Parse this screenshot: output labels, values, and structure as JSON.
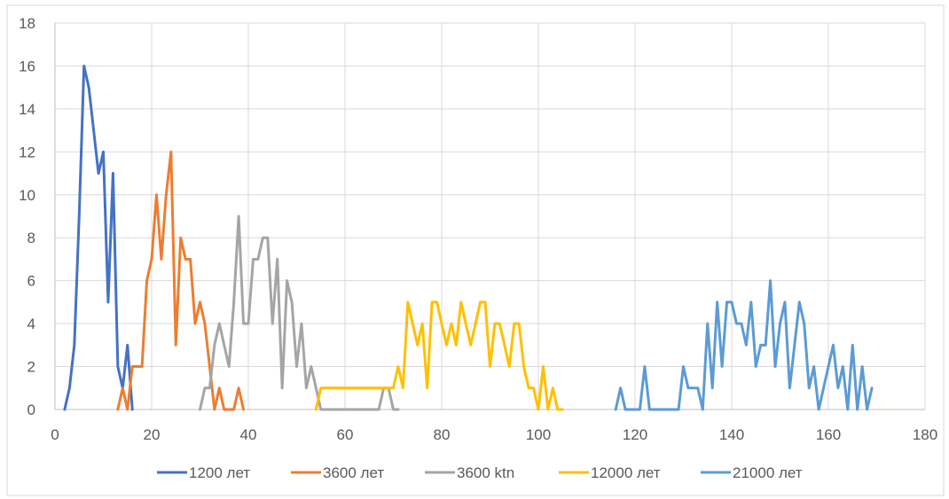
{
  "chart_data": {
    "type": "line",
    "title": "",
    "xlabel": "",
    "ylabel": "",
    "xlim": [
      0,
      180
    ],
    "ylim": [
      0,
      18
    ],
    "x_ticks": [
      0,
      20,
      40,
      60,
      80,
      100,
      120,
      140,
      160,
      180
    ],
    "y_ticks": [
      0,
      2,
      4,
      6,
      8,
      10,
      12,
      14,
      16,
      18
    ],
    "grid": true,
    "legend_position": "bottom",
    "series": [
      {
        "name": "1200 лет",
        "color": "#4472C4",
        "x": [
          2,
          3,
          4,
          5,
          6,
          7,
          8,
          9,
          10,
          11,
          12,
          13,
          14,
          15,
          16
        ],
        "y": [
          0,
          1,
          3,
          9,
          16,
          15,
          13,
          11,
          12,
          5,
          11,
          2,
          1,
          3,
          0
        ]
      },
      {
        "name": "3600 лет",
        "color": "#ED7D31",
        "x": [
          13,
          14,
          15,
          16,
          17,
          18,
          19,
          20,
          21,
          22,
          23,
          24,
          25,
          26,
          27,
          28,
          29,
          30,
          31,
          32,
          33,
          34,
          35,
          36,
          37,
          38,
          39
        ],
        "y": [
          0,
          1,
          0,
          2,
          2,
          2,
          6,
          7,
          10,
          7,
          10,
          12,
          3,
          8,
          7,
          7,
          4,
          5,
          4,
          2,
          0,
          1,
          0,
          0,
          0,
          1,
          0
        ]
      },
      {
        "name": "3600 ktn",
        "color": "#A5A5A5",
        "x": [
          30,
          31,
          32,
          33,
          34,
          35,
          36,
          37,
          38,
          39,
          40,
          41,
          42,
          43,
          44,
          45,
          46,
          47,
          48,
          49,
          50,
          51,
          52,
          53,
          54,
          55,
          56,
          57,
          58,
          59,
          60,
          61,
          62,
          63,
          64,
          65,
          66,
          67,
          68,
          69,
          70,
          71
        ],
        "y": [
          0,
          1,
          1,
          3,
          4,
          3,
          2,
          5,
          9,
          4,
          4,
          7,
          7,
          8,
          8,
          4,
          7,
          1,
          6,
          5,
          2,
          4,
          1,
          2,
          1,
          0,
          0,
          0,
          0,
          0,
          0,
          0,
          0,
          0,
          0,
          0,
          0,
          0,
          1,
          1,
          0,
          0
        ]
      },
      {
        "name": "12000 лет",
        "color": "#FFC000",
        "x": [
          54,
          55,
          56,
          57,
          58,
          59,
          60,
          61,
          62,
          63,
          64,
          65,
          66,
          67,
          68,
          69,
          70,
          71,
          72,
          73,
          74,
          75,
          76,
          77,
          78,
          79,
          80,
          81,
          82,
          83,
          84,
          85,
          86,
          87,
          88,
          89,
          90,
          91,
          92,
          93,
          94,
          95,
          96,
          97,
          98,
          99,
          100,
          101,
          102,
          103,
          104,
          105
        ],
        "y": [
          0,
          1,
          1,
          1,
          1,
          1,
          1,
          1,
          1,
          1,
          1,
          1,
          1,
          1,
          1,
          1,
          1,
          2,
          1,
          5,
          4,
          3,
          4,
          1,
          5,
          5,
          4,
          3,
          4,
          3,
          5,
          4,
          3,
          4,
          5,
          5,
          2,
          4,
          4,
          3,
          2,
          4,
          4,
          2,
          1,
          1,
          0,
          2,
          0,
          1,
          0,
          0
        ]
      },
      {
        "name": "21000 лет",
        "color": "#5B9BD5",
        "x": [
          116,
          117,
          118,
          119,
          120,
          121,
          122,
          123,
          124,
          125,
          126,
          127,
          128,
          129,
          130,
          131,
          132,
          133,
          134,
          135,
          136,
          137,
          138,
          139,
          140,
          141,
          142,
          143,
          144,
          145,
          146,
          147,
          148,
          149,
          150,
          151,
          152,
          153,
          154,
          155,
          156,
          157,
          158,
          159,
          160,
          161,
          162,
          163,
          164,
          165,
          166,
          167,
          168,
          169
        ],
        "y": [
          0,
          1,
          0,
          0,
          0,
          0,
          2,
          0,
          0,
          0,
          0,
          0,
          0,
          0,
          2,
          1,
          1,
          1,
          0,
          4,
          1,
          5,
          2,
          5,
          5,
          4,
          4,
          3,
          5,
          2,
          3,
          3,
          6,
          2,
          4,
          5,
          1,
          3,
          5,
          4,
          1,
          2,
          0,
          1,
          2,
          3,
          1,
          2,
          0,
          3,
          0,
          2,
          0,
          1
        ]
      }
    ]
  }
}
